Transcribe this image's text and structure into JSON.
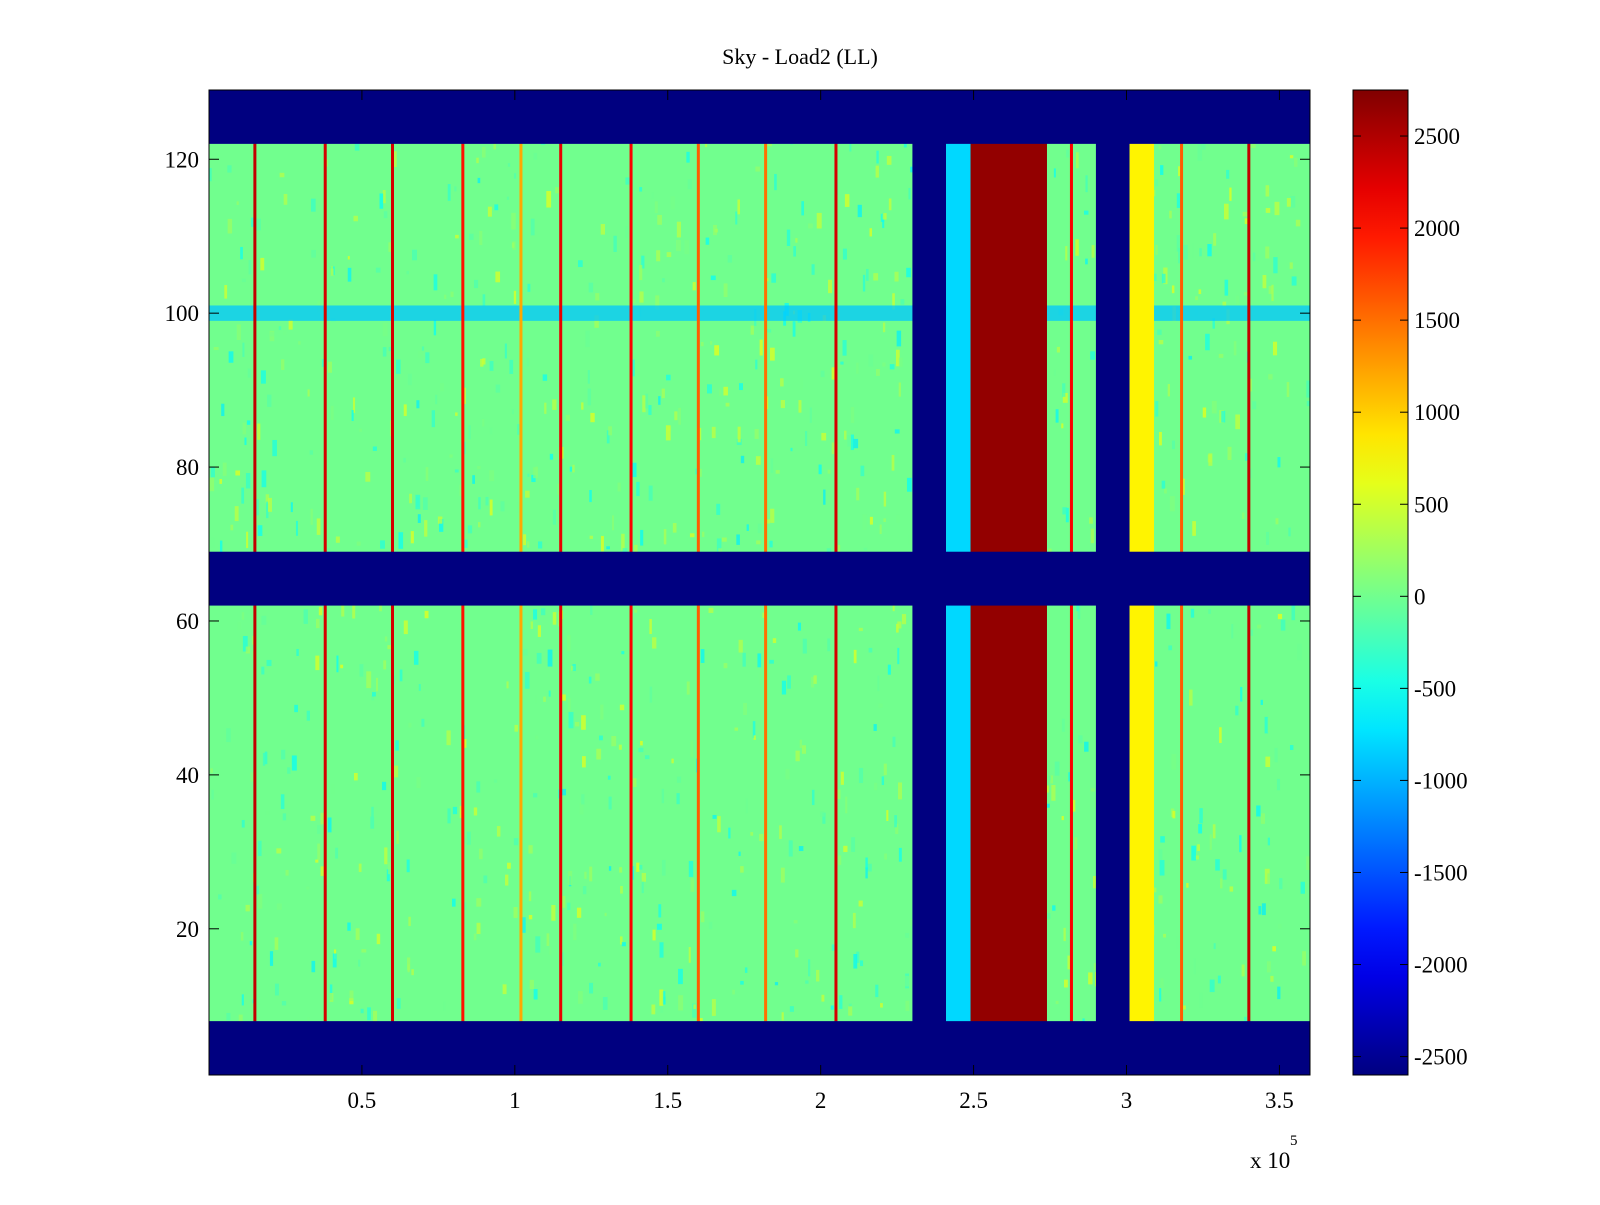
{
  "chart_data": {
    "type": "heatmap",
    "title": "Sky - Load2 (LL)",
    "xlabel": "",
    "ylabel": "",
    "x_exponent_label": "x 10",
    "x_exponent_power": "5",
    "xlim": [
      0,
      360000
    ],
    "ylim": [
      1,
      129
    ],
    "x_ticks": [
      {
        "value": 50000,
        "label": "0.5"
      },
      {
        "value": 100000,
        "label": "1"
      },
      {
        "value": 150000,
        "label": "1.5"
      },
      {
        "value": 200000,
        "label": "2"
      },
      {
        "value": 250000,
        "label": "2.5"
      },
      {
        "value": 300000,
        "label": "3"
      },
      {
        "value": 350000,
        "label": "3.5"
      }
    ],
    "y_ticks": [
      {
        "value": 20,
        "label": "20"
      },
      {
        "value": 40,
        "label": "40"
      },
      {
        "value": 60,
        "label": "60"
      },
      {
        "value": 80,
        "label": "80"
      },
      {
        "value": 100,
        "label": "100"
      },
      {
        "value": 120,
        "label": "120"
      }
    ],
    "colormap": "jet",
    "color_range": [
      -2600,
      2750
    ],
    "colorbar_ticks": [
      {
        "value": 2500,
        "label": "2500"
      },
      {
        "value": 2000,
        "label": "2000"
      },
      {
        "value": 1500,
        "label": "1500"
      },
      {
        "value": 1000,
        "label": "1000"
      },
      {
        "value": 500,
        "label": "500"
      },
      {
        "value": 0,
        "label": "0"
      },
      {
        "value": -500,
        "label": "-500"
      },
      {
        "value": -1000,
        "label": "-1000"
      },
      {
        "value": -1500,
        "label": "-1500"
      },
      {
        "value": -2000,
        "label": "-2000"
      },
      {
        "value": -2500,
        "label": "-2500"
      }
    ],
    "background_value": -0.1,
    "masked_rows": [
      [
        1,
        8
      ],
      [
        62,
        69
      ],
      [
        122,
        129
      ]
    ],
    "column_bands": [
      {
        "x_start": 230000,
        "x_end": 241000,
        "value": -2600
      },
      {
        "x_start": 241000,
        "x_end": 249000,
        "value": -800
      },
      {
        "x_start": 249000,
        "x_end": 274000,
        "value": 2650
      },
      {
        "x_start": 290000,
        "x_end": 301000,
        "value": -2600
      },
      {
        "x_start": 301000,
        "x_end": 309000,
        "value": 800
      }
    ],
    "vertical_lines": [
      {
        "x": 15000,
        "value": 2400
      },
      {
        "x": 38000,
        "value": 2300
      },
      {
        "x": 60000,
        "value": 2300
      },
      {
        "x": 83000,
        "value": 2000
      },
      {
        "x": 102000,
        "value": 1200
      },
      {
        "x": 115000,
        "value": 2200
      },
      {
        "x": 138000,
        "value": 2100
      },
      {
        "x": 160000,
        "value": 1600
      },
      {
        "x": 182000,
        "value": 1500
      },
      {
        "x": 205000,
        "value": 2300
      },
      {
        "x": 282000,
        "value": 2100
      },
      {
        "x": 318000,
        "value": 1600
      },
      {
        "x": 340000,
        "value": 2400
      }
    ],
    "horizontal_stripe": {
      "y_start": 99,
      "y_end": 101,
      "value": -900
    }
  }
}
